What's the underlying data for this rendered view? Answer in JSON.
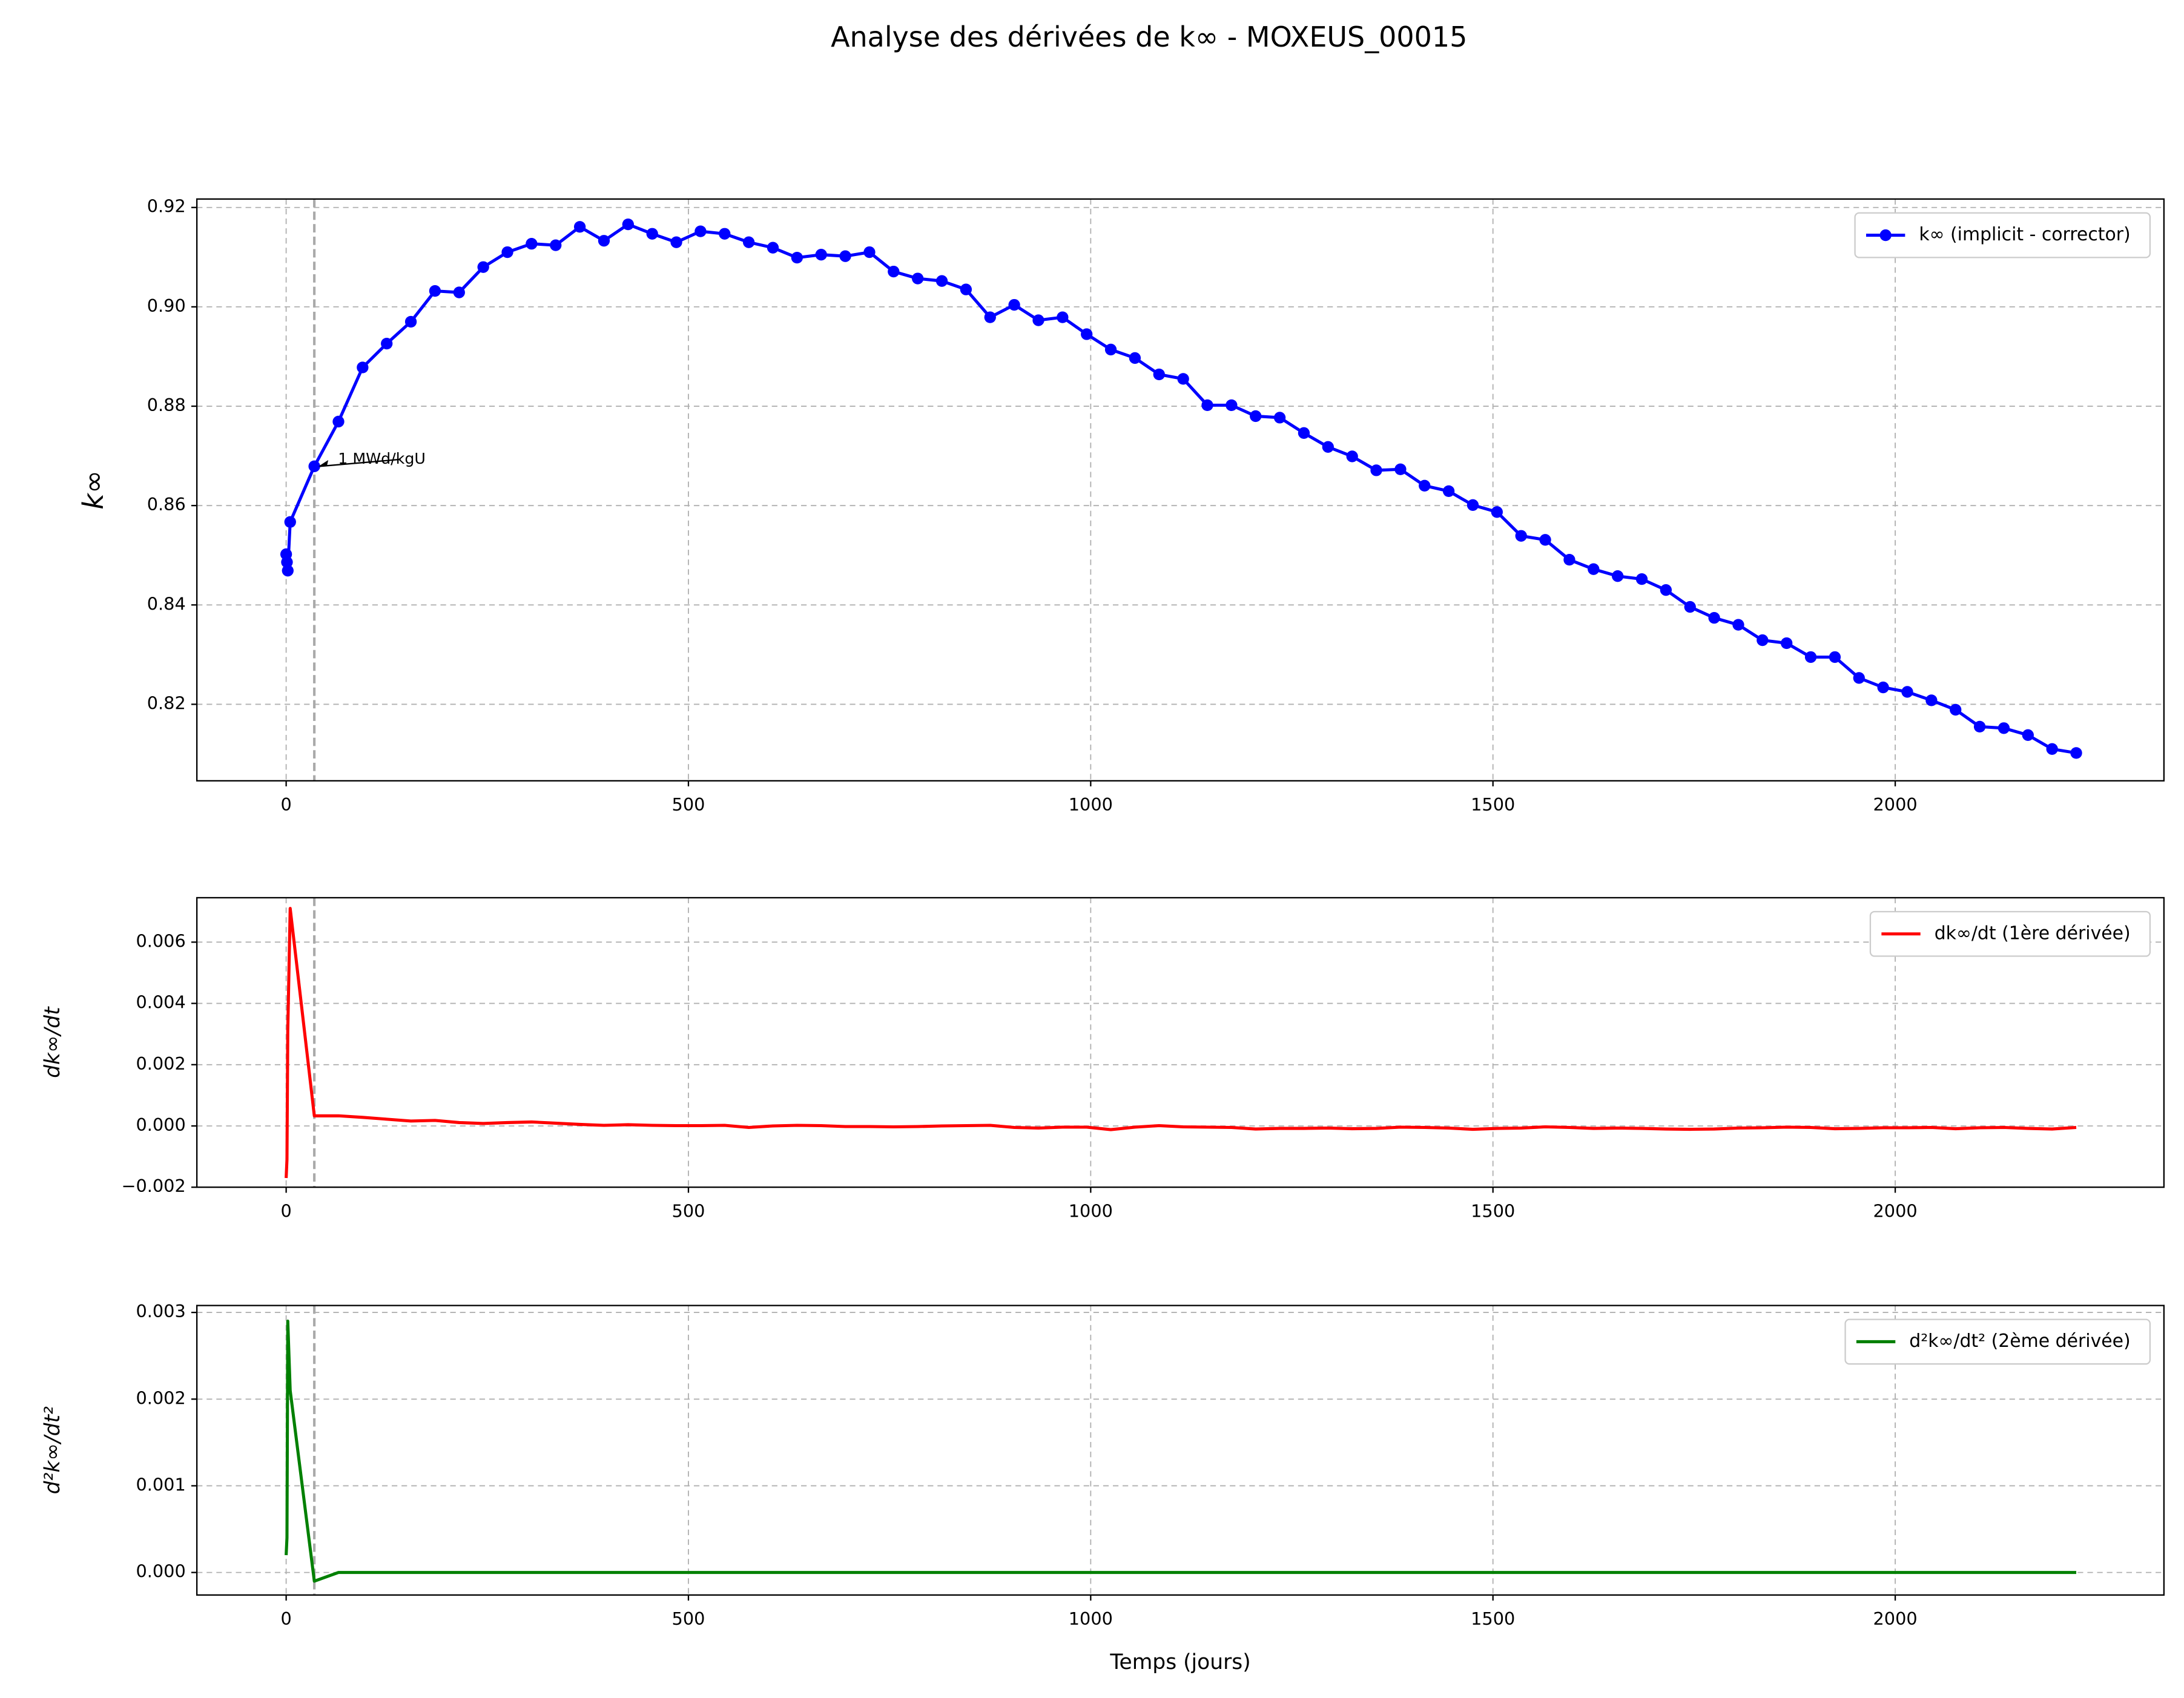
{
  "title": "Analyse des dérivées de k∞ - MOXEUS_00015",
  "chart_data": [
    {
      "type": "line",
      "ylabel": "k∞",
      "legend": "upper right",
      "grid": true,
      "vline": 35,
      "xlim": [
        -111,
        2334
      ],
      "xticks": [
        0,
        500,
        1000,
        1500,
        2000
      ],
      "ylim": [
        0.8046,
        0.9217
      ],
      "yticks": [
        0.82,
        0.84,
        0.86,
        0.88,
        {
          "value": 0.9,
          "label": "0.90"
        },
        0.92
      ],
      "annotation": {
        "text": "1 MWd/kgU",
        "x": 35,
        "y": 0.8679
      },
      "x": [
        0,
        1,
        2,
        5,
        35,
        65,
        95,
        125,
        155,
        185,
        215,
        245,
        275,
        305,
        335,
        365,
        395,
        425,
        455,
        485,
        515,
        545,
        575,
        605,
        635,
        665,
        695,
        725,
        755,
        785,
        815,
        845,
        875,
        905,
        935,
        965,
        995,
        1025,
        1055,
        1085,
        1115,
        1145,
        1175,
        1205,
        1235,
        1265,
        1295,
        1325,
        1355,
        1385,
        1415,
        1445,
        1475,
        1505,
        1535,
        1565,
        1595,
        1625,
        1655,
        1685,
        1715,
        1745,
        1775,
        1805,
        1835,
        1865,
        1895,
        1925,
        1955,
        1985,
        2015,
        2045,
        2075,
        2105,
        2135,
        2165,
        2195,
        2225
      ],
      "series": [
        {
          "name": "k∞ (implicit - corrector)",
          "color": "#0000ff",
          "marker": true,
          "values": [
            0.8502,
            0.8486,
            0.8469,
            0.8567,
            0.8679,
            0.8769,
            0.8878,
            0.8926,
            0.897,
            0.9032,
            0.9029,
            0.908,
            0.911,
            0.9127,
            0.9124,
            0.9161,
            0.9133,
            0.9166,
            0.9147,
            0.913,
            0.9152,
            0.9147,
            0.913,
            0.9119,
            0.9099,
            0.9105,
            0.9102,
            0.911,
            0.9071,
            0.9057,
            0.9052,
            0.9035,
            0.8979,
            0.9004,
            0.8973,
            0.8979,
            0.8945,
            0.8914,
            0.8897,
            0.8864,
            0.8855,
            0.8802,
            0.8802,
            0.878,
            0.8777,
            0.8746,
            0.8718,
            0.8699,
            0.8671,
            0.8673,
            0.864,
            0.8629,
            0.8601,
            0.8587,
            0.8539,
            0.8531,
            0.8491,
            0.8472,
            0.8458,
            0.8452,
            0.843,
            0.8396,
            0.8374,
            0.836,
            0.8329,
            0.8323,
            0.8295,
            0.8295,
            0.8253,
            0.8234,
            0.8225,
            0.8208,
            0.8189,
            0.8155,
            0.8152,
            0.8138,
            0.811,
            0.8102
          ]
        }
      ]
    },
    {
      "type": "line",
      "ylabel": "dk∞/dt",
      "legend": "upper right",
      "grid": true,
      "vline": 35,
      "xlim": [
        -111,
        2334
      ],
      "xticks": [
        0,
        500,
        1000,
        1500,
        2000
      ],
      "ylim": [
        -0.002,
        0.00745
      ],
      "yticks": [
        {
          "value": -0.002,
          "label": "−0.002"
        },
        {
          "value": 0,
          "label": "0.000"
        },
        {
          "value": 0.002,
          "label": "0.002"
        },
        {
          "value": 0.004,
          "label": "0.004"
        },
        {
          "value": 0.006,
          "label": "0.006"
        }
      ],
      "x": [
        0,
        1,
        2,
        5,
        35,
        65,
        95,
        125,
        155,
        185,
        215,
        245,
        275,
        305,
        335,
        365,
        395,
        425,
        455,
        485,
        515,
        545,
        575,
        605,
        635,
        665,
        695,
        725,
        755,
        785,
        815,
        845,
        875,
        905,
        935,
        965,
        995,
        1025,
        1055,
        1085,
        1115,
        1145,
        1175,
        1205,
        1235,
        1265,
        1295,
        1325,
        1355,
        1385,
        1415,
        1445,
        1475,
        1505,
        1535,
        1565,
        1595,
        1625,
        1655,
        1685,
        1715,
        1745,
        1775,
        1805,
        1835,
        1865,
        1895,
        1925,
        1955,
        1985,
        2015,
        2045,
        2075,
        2105,
        2135,
        2165,
        2195,
        2225
      ],
      "series": [
        {
          "name": "dk∞/dt (1ère dérivée)",
          "color": "#ff0000",
          "marker": false,
          "values": [
            -0.0017,
            -0.0011,
            0.0031,
            0.0071,
            0.00033,
            0.00033,
            0.00028,
            0.00022,
            0.00016,
            0.00018,
            0.00011,
            8e-05,
            0.00011,
            0.00013,
            9e-05,
            5e-05,
            2e-05,
            4e-05,
            2e-05,
            1e-05,
            1e-05,
            2e-05,
            -5e-05,
            0,
            2e-05,
            1e-05,
            -2e-05,
            -2e-05,
            -3e-05,
            -2e-05,
            0,
            1e-05,
            2e-05,
            -5e-05,
            -7e-05,
            -4e-05,
            -4e-05,
            -0.00012,
            -4e-05,
            1e-05,
            -3e-05,
            -4e-05,
            -5e-05,
            -0.0001,
            -8e-05,
            -8e-05,
            -7e-05,
            -9e-05,
            -8e-05,
            -4e-05,
            -5e-05,
            -7e-05,
            -0.00011,
            -8e-05,
            -7e-05,
            -3e-05,
            -5e-05,
            -8e-05,
            -7e-05,
            -8e-05,
            -0.0001,
            -0.00011,
            -0.0001,
            -7e-05,
            -6e-05,
            -4e-05,
            -5e-05,
            -9e-05,
            -8e-05,
            -6e-05,
            -6e-05,
            -5e-05,
            -9e-05,
            -6e-05,
            -5e-05,
            -8e-05,
            -0.0001,
            -5e-05
          ]
        }
      ]
    },
    {
      "type": "line",
      "ylabel": "d²k∞/dt²",
      "xlabel": "Temps (jours)",
      "legend": "upper right",
      "grid": true,
      "vline": 35,
      "xlim": [
        -111,
        2334
      ],
      "xticks": [
        0,
        500,
        1000,
        1500,
        2000
      ],
      "ylim": [
        -0.00026,
        0.00308
      ],
      "yticks": [
        {
          "value": 0,
          "label": "0.000"
        },
        {
          "value": 0.001,
          "label": "0.001"
        },
        {
          "value": 0.002,
          "label": "0.002"
        },
        {
          "value": 0.003,
          "label": "0.003"
        }
      ],
      "x": [
        0,
        1,
        2,
        5,
        35,
        65,
        95,
        125,
        155,
        185,
        215,
        245,
        275,
        305,
        335,
        365,
        395,
        425,
        455,
        485,
        515,
        545,
        575,
        605,
        635,
        665,
        695,
        725,
        755,
        785,
        815,
        845,
        875,
        905,
        935,
        965,
        995,
        1025,
        1055,
        1085,
        1115,
        1145,
        1175,
        1205,
        1235,
        1265,
        1295,
        1325,
        1355,
        1385,
        1415,
        1445,
        1475,
        1505,
        1535,
        1565,
        1595,
        1625,
        1655,
        1685,
        1715,
        1745,
        1775,
        1805,
        1835,
        1865,
        1895,
        1925,
        1955,
        1985,
        2015,
        2045,
        2075,
        2105,
        2135,
        2165,
        2195,
        2225
      ],
      "series": [
        {
          "name": "d²k∞/dt² (2ème dérivée)",
          "color": "#008000",
          "marker": false,
          "values": [
            0.0002,
            0.0004,
            0.0029,
            0.0021,
            -0.0001,
            0,
            0,
            0,
            0,
            0,
            0,
            0,
            0,
            0,
            0,
            0,
            0,
            0,
            0,
            0,
            0,
            0,
            0,
            0,
            0,
            0,
            0,
            0,
            0,
            0,
            0,
            0,
            0,
            0,
            0,
            0,
            0,
            0,
            0,
            0,
            0,
            0,
            0,
            0,
            0,
            0,
            0,
            0,
            0,
            0,
            0,
            0,
            0,
            0,
            0,
            0,
            0,
            0,
            0,
            0,
            0,
            0,
            0,
            0,
            0,
            0,
            0,
            0,
            0,
            0,
            0,
            0,
            0,
            0,
            0,
            0,
            0,
            0
          ]
        }
      ]
    }
  ]
}
